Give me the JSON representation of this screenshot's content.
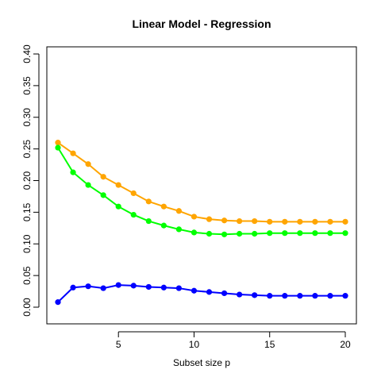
{
  "chart_data": {
    "type": "line",
    "title": "Linear Model - Regression",
    "xlabel": "Subset size p",
    "ylabel": "",
    "xlim": [
      1,
      20
    ],
    "ylim": [
      0,
      0.4
    ],
    "x_ticks": [
      5,
      10,
      15,
      20
    ],
    "x_tick_labels": [
      "5",
      "10",
      "15",
      "20"
    ],
    "y_ticks": [
      0.0,
      0.05,
      0.1,
      0.15,
      0.2,
      0.25,
      0.3,
      0.35,
      0.4
    ],
    "y_tick_labels": [
      "0.00",
      "0.05",
      "0.10",
      "0.15",
      "0.20",
      "0.25",
      "0.30",
      "0.35",
      "0.40"
    ],
    "grid": false,
    "legend": "none",
    "x": [
      1,
      2,
      3,
      4,
      5,
      6,
      7,
      8,
      9,
      10,
      11,
      12,
      13,
      14,
      15,
      16,
      17,
      18,
      19,
      20
    ],
    "series": [
      {
        "color": "#FFA500",
        "values": [
          0.26,
          0.243,
          0.226,
          0.206,
          0.193,
          0.18,
          0.167,
          0.159,
          0.152,
          0.143,
          0.139,
          0.137,
          0.136,
          0.136,
          0.135,
          0.135,
          0.135,
          0.135,
          0.135,
          0.135
        ]
      },
      {
        "color": "#00FF00",
        "values": [
          0.252,
          0.213,
          0.193,
          0.177,
          0.159,
          0.146,
          0.136,
          0.129,
          0.123,
          0.118,
          0.116,
          0.115,
          0.116,
          0.116,
          0.117,
          0.117,
          0.117,
          0.117,
          0.117,
          0.117
        ]
      },
      {
        "color": "#0000FF",
        "values": [
          0.008,
          0.031,
          0.033,
          0.03,
          0.035,
          0.034,
          0.032,
          0.031,
          0.03,
          0.026,
          0.024,
          0.022,
          0.02,
          0.019,
          0.018,
          0.018,
          0.018,
          0.018,
          0.018,
          0.018
        ]
      }
    ]
  }
}
